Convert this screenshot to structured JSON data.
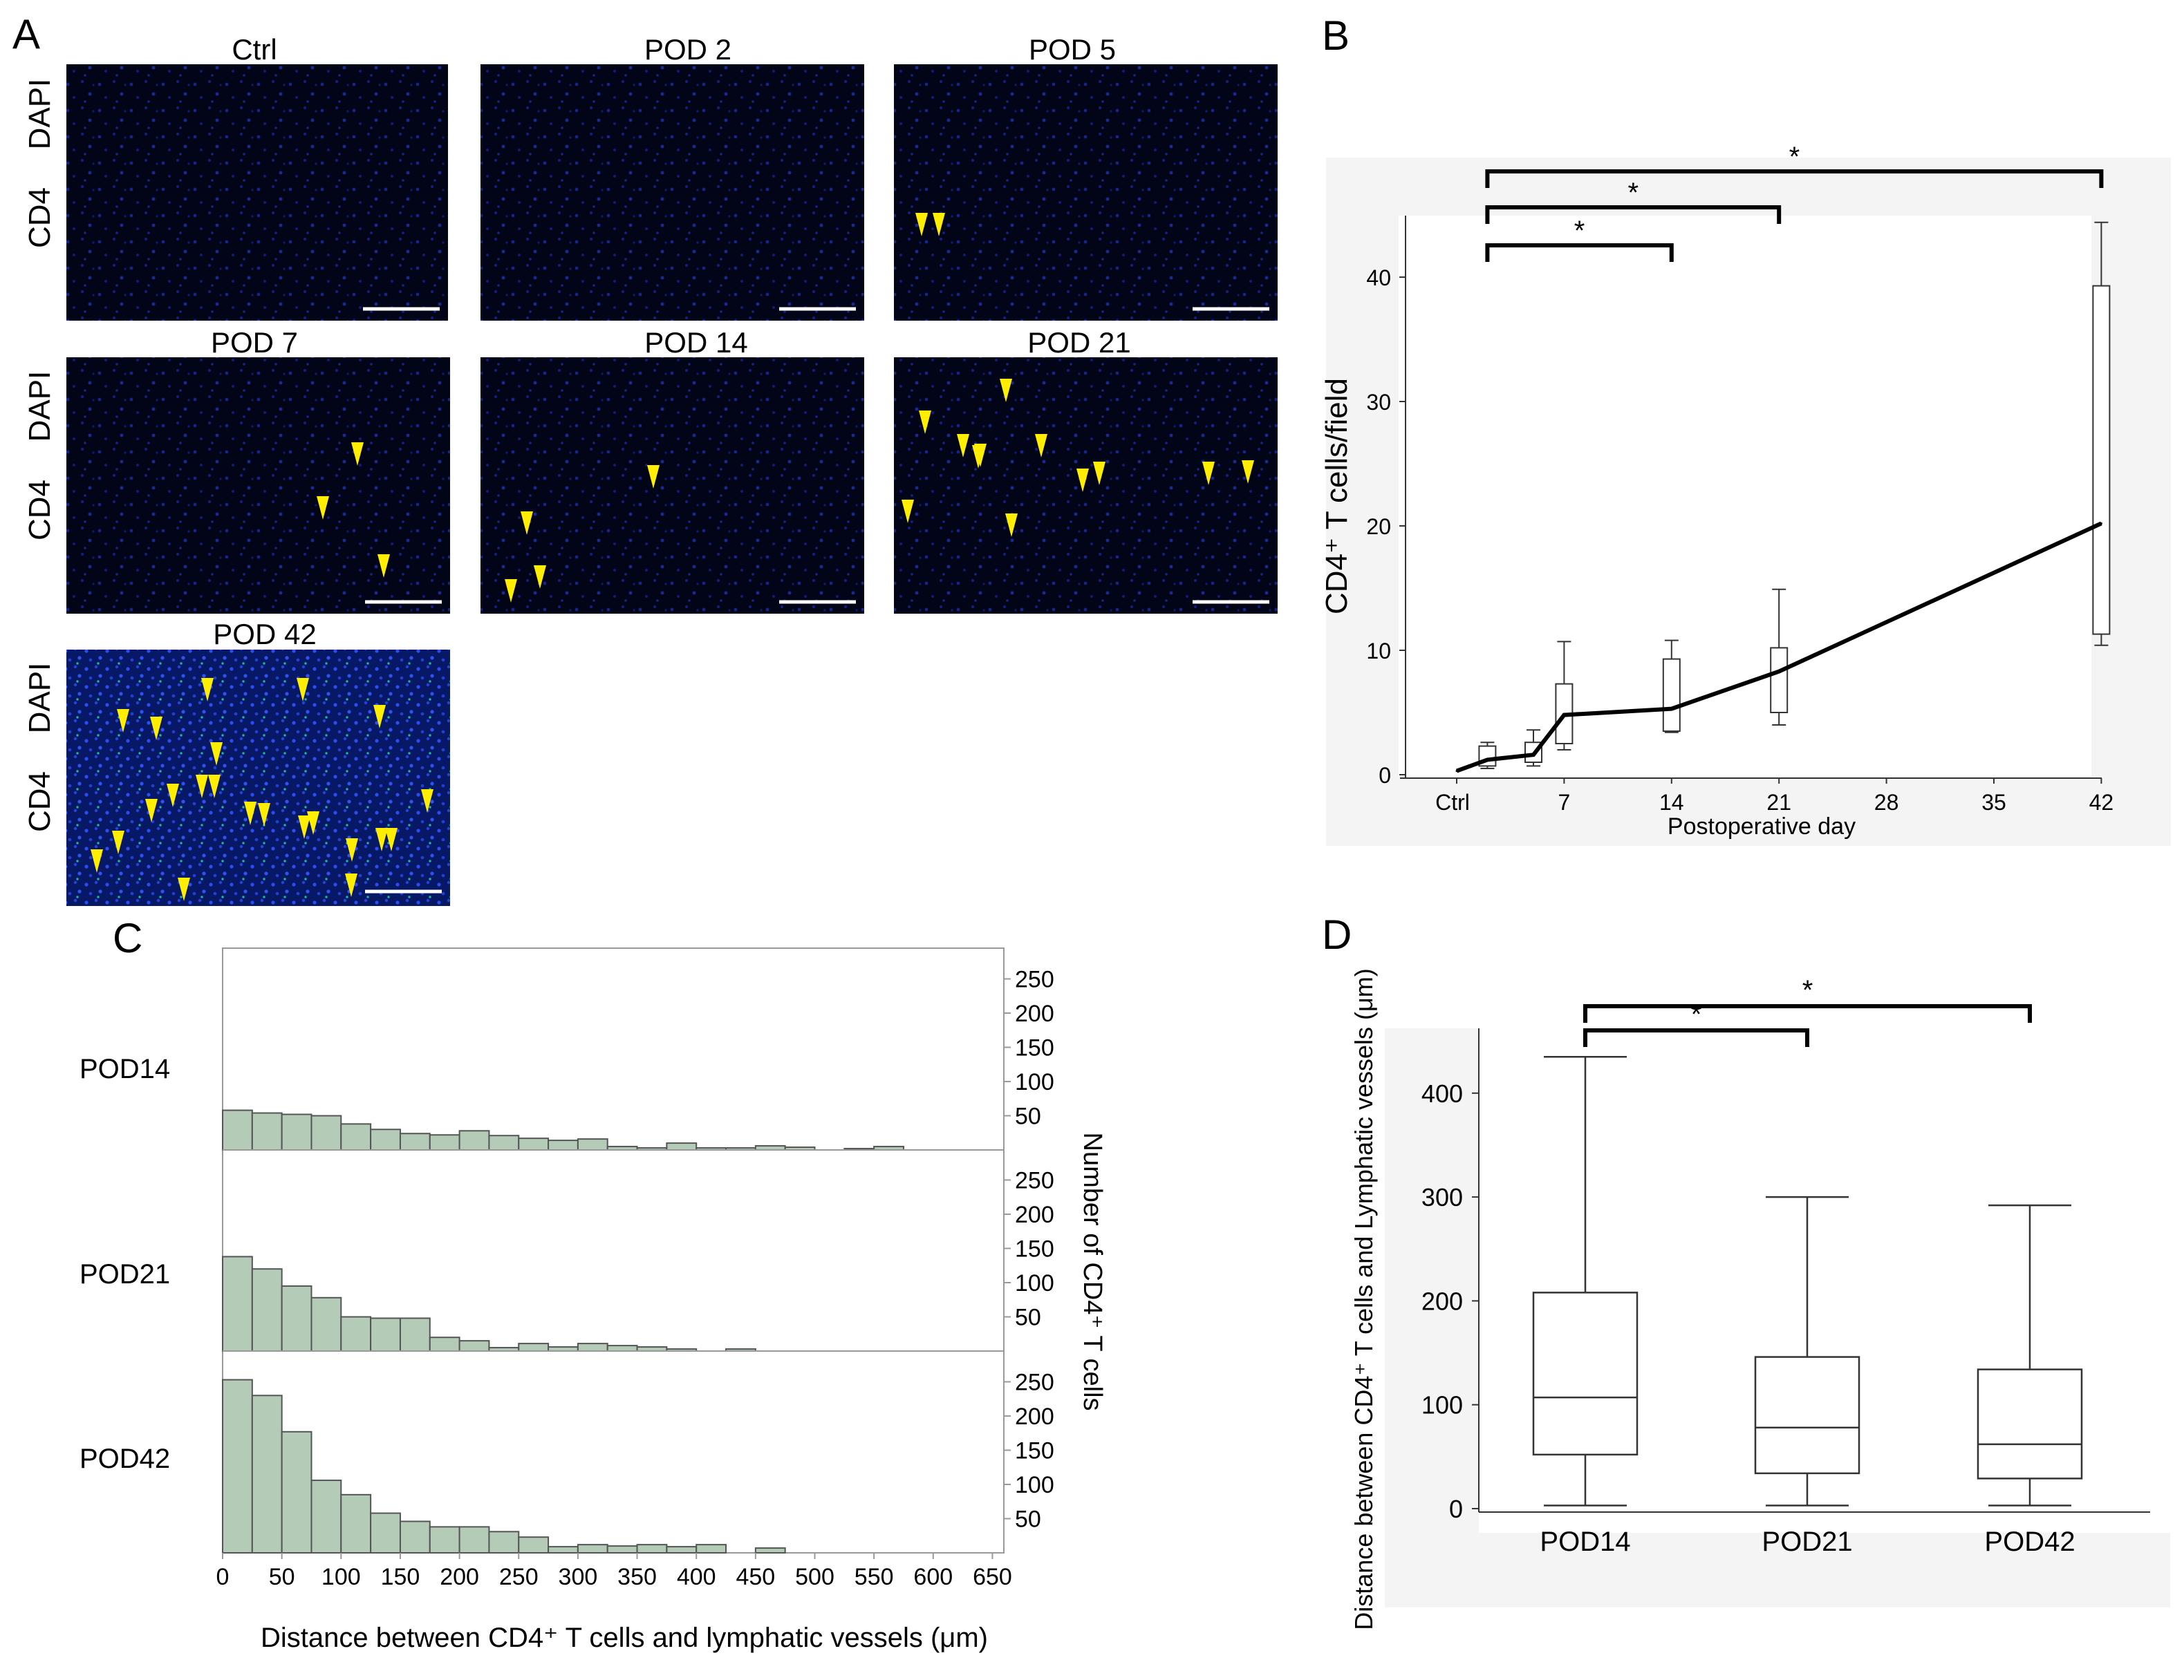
{
  "colors": {
    "micro_bg": "#020418",
    "dapi_label": "#1f7fbf",
    "cd4_label": "#1fc07a",
    "arrow": "#ffee00",
    "hist_fill": "#b4cbb8",
    "hist_stroke": "#555555",
    "panel_bg_b": "#f4f4f4",
    "panel_bg_d": "#f4f4f4"
  },
  "panel_labels": {
    "a": "A",
    "b": "B",
    "c": "C",
    "d": "D"
  },
  "panel_a": {
    "channel_labels": {
      "dapi": "DAPI",
      "cd4": "CD4"
    },
    "images": [
      {
        "title": "Ctrl",
        "arrow_count": 0
      },
      {
        "title": "POD 2",
        "arrow_count": 0
      },
      {
        "title": "POD 5",
        "arrow_count": 2
      },
      {
        "title": "POD 7",
        "arrow_count": 3
      },
      {
        "title": "POD 14",
        "arrow_count": 4
      },
      {
        "title": "POD 21",
        "arrow_count": 12
      },
      {
        "title": "POD 42",
        "arrow_count": 22
      }
    ]
  },
  "chart_data": [
    {
      "panel": "B",
      "type": "line",
      "xlabel": "Postoperative day",
      "ylabel": "CD4⁺ T cells/field",
      "x_ticks": [
        0,
        7,
        14,
        21,
        28,
        35,
        42
      ],
      "x_tick_labels": [
        "Ctrl",
        "7",
        "14",
        "21",
        "28",
        "35",
        "42"
      ],
      "xlim": [
        -2,
        44
      ],
      "ylim": [
        0,
        45
      ],
      "y_ticks": [
        0,
        10,
        20,
        30,
        40
      ],
      "series": [
        {
          "name": "mean",
          "x": [
            0,
            2,
            5,
            7,
            14,
            21,
            42
          ],
          "y": [
            0.3,
            1.2,
            1.6,
            4.8,
            5.3,
            8.3,
            20.2
          ]
        }
      ],
      "boxes": [
        {
          "x": 2,
          "min": 0.5,
          "q1": 0.7,
          "median": 1.2,
          "q3": 2.3,
          "max": 2.6
        },
        {
          "x": 5,
          "min": 0.7,
          "q1": 1.0,
          "median": 1.6,
          "q3": 2.6,
          "max": 3.6
        },
        {
          "x": 7,
          "min": 2.0,
          "q1": 2.5,
          "median": 4.8,
          "q3": 7.3,
          "max": 10.7
        },
        {
          "x": 14,
          "min": 3.4,
          "q1": 3.5,
          "median": 5.3,
          "q3": 9.3,
          "max": 10.8
        },
        {
          "x": 21,
          "min": 4.0,
          "q1": 5.0,
          "median": 8.3,
          "q3": 10.2,
          "max": 14.9
        },
        {
          "x": 42,
          "min": 10.4,
          "q1": 11.3,
          "median": 20.2,
          "q3": 39.3,
          "max": 44.4
        }
      ],
      "significance": [
        {
          "from": 2,
          "to": 14,
          "label": "*"
        },
        {
          "from": 2,
          "to": 21,
          "label": "*"
        },
        {
          "from": 2,
          "to": 42,
          "label": "*"
        }
      ]
    },
    {
      "panel": "C",
      "type": "bar",
      "xlabel": "Distance between CD4⁺ T cells and lymphatic vessels (μm)",
      "ylabel": "Number of CD4⁺ T cells",
      "bin_width": 25,
      "xlim": [
        0,
        660
      ],
      "x_ticks": [
        0,
        50,
        100,
        150,
        200,
        250,
        300,
        350,
        400,
        450,
        500,
        550,
        600,
        650
      ],
      "ylim": [
        0,
        285
      ],
      "y_ticks": [
        50,
        100,
        150,
        200,
        250
      ],
      "series": [
        {
          "name": "POD14",
          "values": [
            58,
            54,
            52,
            50,
            38,
            30,
            24,
            22,
            28,
            21,
            17,
            14,
            16,
            5,
            3,
            10,
            3,
            3,
            6,
            4,
            0,
            2,
            5,
            0,
            0,
            0
          ]
        },
        {
          "name": "POD21",
          "values": [
            138,
            120,
            95,
            78,
            50,
            48,
            48,
            20,
            15,
            5,
            11,
            6,
            11,
            8,
            6,
            3,
            0,
            3,
            0,
            0,
            0,
            0,
            0,
            0,
            0,
            0
          ]
        },
        {
          "name": "POD42",
          "values": [
            253,
            230,
            177,
            106,
            85,
            58,
            46,
            38,
            38,
            31,
            23,
            9,
            12,
            10,
            12,
            9,
            12,
            0,
            7,
            0,
            0,
            0,
            0,
            0,
            0,
            0
          ]
        }
      ]
    },
    {
      "panel": "D",
      "type": "box",
      "categories": [
        "POD14",
        "POD21",
        "POD42"
      ],
      "ylabel": "Distance between CD4⁺ T cells and Lymphatic vessels (μm)",
      "ylim": [
        -20,
        470
      ],
      "y_ticks": [
        0,
        100,
        200,
        300,
        400
      ],
      "boxes": [
        {
          "min": 3,
          "q1": 52,
          "median": 107,
          "q3": 208,
          "max": 435
        },
        {
          "min": 3,
          "q1": 34,
          "median": 78,
          "q3": 146,
          "max": 300
        },
        {
          "min": 3,
          "q1": 29,
          "median": 62,
          "q3": 134,
          "max": 292
        }
      ],
      "significance": [
        {
          "from": 0,
          "to": 1,
          "label": "*"
        },
        {
          "from": 0,
          "to": 2,
          "label": "*"
        }
      ]
    }
  ]
}
